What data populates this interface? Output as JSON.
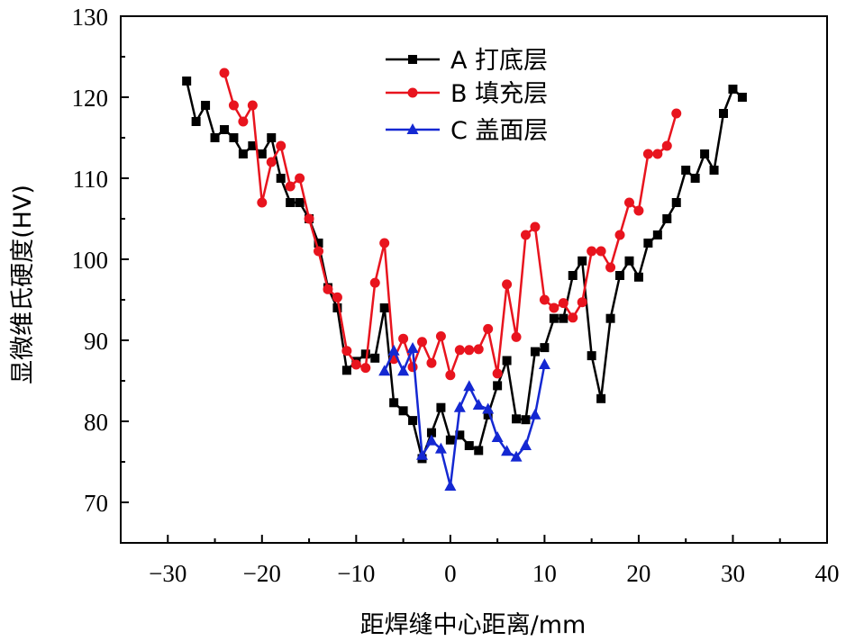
{
  "chart_data": {
    "type": "line",
    "title": "",
    "xlabel": "距焊缝中心距离/mm",
    "ylabel": "显微维氏硬度(HV)",
    "xlim": [
      -35,
      40
    ],
    "ylim": [
      65,
      130
    ],
    "xticks": [
      -30,
      -20,
      -10,
      0,
      10,
      20,
      30,
      40
    ],
    "yticks": [
      70,
      80,
      90,
      100,
      110,
      120,
      130
    ],
    "xtick_labels": [
      "−30",
      "−20",
      "−10",
      "0",
      "10",
      "20",
      "30",
      "40"
    ],
    "ytick_labels": [
      "70",
      "80",
      "90",
      "100",
      "110",
      "120",
      "130"
    ],
    "grid": false,
    "legend_position": "top-center",
    "series": [
      {
        "name": "A 打底层",
        "color": "#000000",
        "marker": "square",
        "x": [
          -28,
          -27,
          -26,
          -25,
          -24,
          -23,
          -22,
          -21,
          -20,
          -19,
          -18,
          -17,
          -16,
          -15,
          -14,
          -13,
          -12,
          -11,
          -10,
          -9,
          -8,
          -7,
          -6,
          -5,
          -4,
          -3,
          -2,
          -1,
          0,
          1,
          2,
          3,
          4,
          5,
          6,
          7,
          8,
          9,
          10,
          11,
          12,
          13,
          14,
          15,
          16,
          17,
          18,
          19,
          20,
          21,
          22,
          23,
          24,
          25,
          26,
          27,
          28,
          29,
          30,
          31
        ],
        "y": [
          122,
          117,
          119,
          115,
          116,
          115,
          113,
          114,
          113,
          115,
          110,
          107,
          107,
          105,
          102,
          96.5,
          94,
          86.3,
          87.4,
          88.3,
          87.8,
          94,
          82.3,
          81.3,
          80.1,
          75.4,
          78.6,
          81.7,
          77.7,
          78.3,
          77,
          76.4,
          80.8,
          84.4,
          87.5,
          80.3,
          80.2,
          88.6,
          89.1,
          92.7,
          92.7,
          98,
          99.8,
          88.1,
          82.8,
          92.7,
          98,
          99.8,
          97.8,
          102,
          103,
          105,
          107,
          111,
          110,
          113,
          111,
          118,
          121,
          120
        ]
      },
      {
        "name": "B 填充层",
        "color": "#e8141e",
        "marker": "circle",
        "x": [
          -24,
          -23,
          -22,
          -21,
          -20,
          -19,
          -18,
          -17,
          -16,
          -15,
          -14,
          -13,
          -12,
          -11,
          -10,
          -9,
          -8,
          -7,
          -6,
          -5,
          -4,
          -3,
          -2,
          -1,
          0,
          1,
          2,
          3,
          4,
          5,
          6,
          7,
          8,
          9,
          10,
          11,
          12,
          13,
          14,
          15,
          16,
          17,
          18,
          19,
          20,
          21,
          22,
          23,
          24
        ],
        "y": [
          123,
          119,
          117,
          119,
          107,
          112,
          114,
          109,
          110,
          105,
          101,
          96.3,
          95.3,
          88.7,
          87,
          86.6,
          97.1,
          102,
          87.7,
          90.2,
          86.7,
          89.8,
          87.2,
          90.5,
          85.7,
          88.8,
          88.8,
          88.9,
          91.4,
          85.9,
          96.9,
          90.4,
          103,
          104,
          95,
          94,
          94.6,
          92.8,
          94.7,
          101,
          101,
          99,
          103,
          107,
          106,
          113,
          113,
          114,
          118
        ]
      },
      {
        "name": "C 盖面层",
        "color": "#1428d2",
        "marker": "triangle",
        "x": [
          -7,
          -6,
          -5,
          -4,
          -3,
          -2,
          -1,
          0,
          1,
          2,
          3,
          4,
          5,
          6,
          7,
          8,
          9,
          10
        ],
        "y": [
          86.2,
          88.7,
          86.2,
          89,
          75.8,
          77.6,
          76.6,
          72,
          81.7,
          84.3,
          82,
          81.5,
          78,
          76.3,
          75.6,
          77,
          80.8,
          87
        ]
      }
    ]
  }
}
